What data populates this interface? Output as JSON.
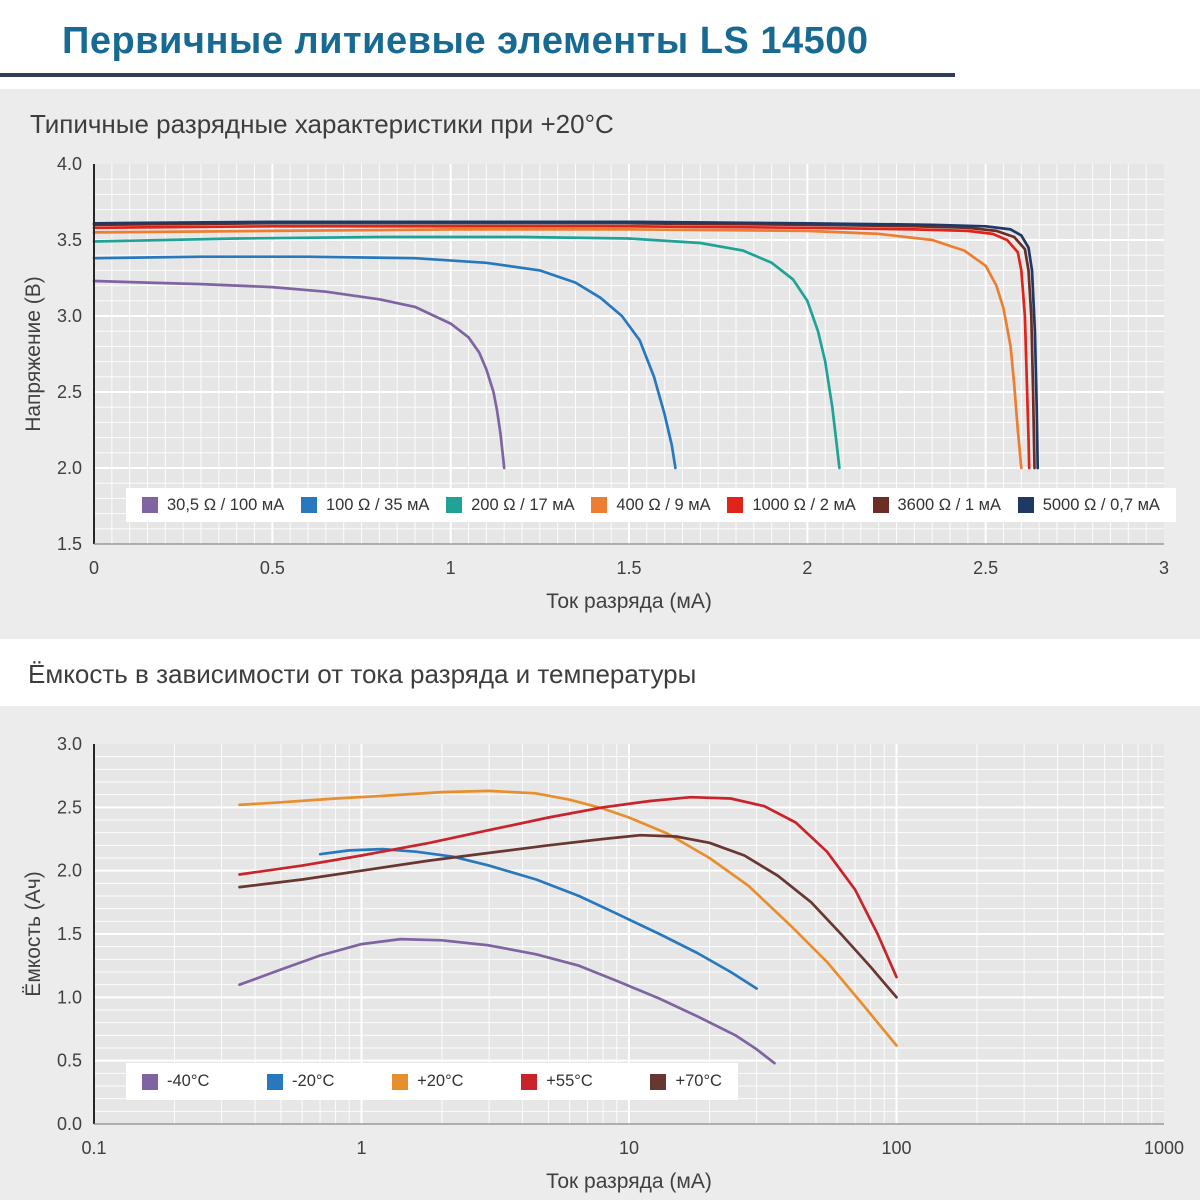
{
  "header": {
    "title": "Первичные литиевые элементы LS 14500"
  },
  "colors": {
    "title": "#196a93",
    "rule": "#2f3d57",
    "panel_bg": "#ececec",
    "plot_bg": "#e6e6e6",
    "grid": "#ffffff"
  },
  "chart_data": [
    {
      "type": "line",
      "title": "Типичные разрядные характеристики при +20°C",
      "xlabel": "Ток разряда (мА)",
      "ylabel": "Напряжение (В)",
      "x_scale": "linear",
      "xlim": [
        0,
        3
      ],
      "ylim": [
        1.5,
        4.0
      ],
      "grid": {
        "x_minor": 0.05,
        "x_major": 0.5,
        "y_minor": 0.1,
        "y_major": 0.5
      },
      "legend_position": "inside-bottom",
      "x_ticks": [
        {
          "v": 0,
          "label": "0"
        },
        {
          "v": 0.5,
          "label": "0.5"
        },
        {
          "v": 1,
          "label": "1"
        },
        {
          "v": 1.5,
          "label": "1.5"
        },
        {
          "v": 2,
          "label": "2"
        },
        {
          "v": 2.5,
          "label": "2.5"
        },
        {
          "v": 3,
          "label": "3"
        }
      ],
      "y_ticks": [
        {
          "v": 1.5,
          "label": "1.5"
        },
        {
          "v": 2.0,
          "label": "2.0"
        },
        {
          "v": 2.5,
          "label": "2.5"
        },
        {
          "v": 3.0,
          "label": "3.0"
        },
        {
          "v": 3.5,
          "label": "3.5"
        },
        {
          "v": 4.0,
          "label": "4.0"
        }
      ],
      "series": [
        {
          "name": "30,5 Ω / 100 мА",
          "color": "#8064A2",
          "points": [
            [
              0,
              3.23
            ],
            [
              0.15,
              3.22
            ],
            [
              0.3,
              3.21
            ],
            [
              0.5,
              3.19
            ],
            [
              0.65,
              3.16
            ],
            [
              0.8,
              3.11
            ],
            [
              0.9,
              3.06
            ],
            [
              1.0,
              2.95
            ],
            [
              1.05,
              2.86
            ],
            [
              1.08,
              2.76
            ],
            [
              1.1,
              2.65
            ],
            [
              1.12,
              2.5
            ],
            [
              1.13,
              2.38
            ],
            [
              1.14,
              2.22
            ],
            [
              1.15,
              2.0
            ]
          ]
        },
        {
          "name": "100 Ω / 35 мА",
          "color": "#2878BE",
          "points": [
            [
              0,
              3.38
            ],
            [
              0.3,
              3.39
            ],
            [
              0.6,
              3.39
            ],
            [
              0.9,
              3.38
            ],
            [
              1.1,
              3.35
            ],
            [
              1.25,
              3.3
            ],
            [
              1.35,
              3.22
            ],
            [
              1.42,
              3.12
            ],
            [
              1.48,
              3.0
            ],
            [
              1.53,
              2.84
            ],
            [
              1.57,
              2.6
            ],
            [
              1.6,
              2.35
            ],
            [
              1.62,
              2.15
            ],
            [
              1.63,
              2.0
            ]
          ]
        },
        {
          "name": "200 Ω / 17 мА",
          "color": "#1FA396",
          "points": [
            [
              0,
              3.49
            ],
            [
              0.4,
              3.51
            ],
            [
              0.8,
              3.52
            ],
            [
              1.2,
              3.52
            ],
            [
              1.5,
              3.51
            ],
            [
              1.7,
              3.48
            ],
            [
              1.82,
              3.43
            ],
            [
              1.9,
              3.35
            ],
            [
              1.96,
              3.24
            ],
            [
              2.0,
              3.1
            ],
            [
              2.03,
              2.9
            ],
            [
              2.05,
              2.7
            ],
            [
              2.07,
              2.4
            ],
            [
              2.08,
              2.2
            ],
            [
              2.09,
              2.0
            ]
          ]
        },
        {
          "name": "400 Ω / 9 мА",
          "color": "#ED7D31",
          "points": [
            [
              0,
              3.55
            ],
            [
              0.5,
              3.56
            ],
            [
              1.0,
              3.57
            ],
            [
              1.5,
              3.57
            ],
            [
              2.0,
              3.56
            ],
            [
              2.2,
              3.54
            ],
            [
              2.35,
              3.5
            ],
            [
              2.44,
              3.43
            ],
            [
              2.5,
              3.33
            ],
            [
              2.53,
              3.2
            ],
            [
              2.55,
              3.05
            ],
            [
              2.57,
              2.8
            ],
            [
              2.58,
              2.55
            ],
            [
              2.59,
              2.25
            ],
            [
              2.6,
              2.0
            ]
          ]
        },
        {
          "name": "1000 Ω / 2 мА",
          "color": "#E2231A",
          "points": [
            [
              0,
              3.58
            ],
            [
              0.5,
              3.59
            ],
            [
              1.0,
              3.59
            ],
            [
              1.5,
              3.59
            ],
            [
              2.0,
              3.58
            ],
            [
              2.3,
              3.57
            ],
            [
              2.45,
              3.56
            ],
            [
              2.52,
              3.54
            ],
            [
              2.56,
              3.5
            ],
            [
              2.59,
              3.42
            ],
            [
              2.6,
              3.3
            ],
            [
              2.61,
              3.0
            ],
            [
              2.615,
              2.6
            ],
            [
              2.62,
              2.2
            ],
            [
              2.622,
              2.0
            ]
          ]
        },
        {
          "name": "3600 Ω / 1 мА",
          "color": "#6B2D26",
          "points": [
            [
              0,
              3.6
            ],
            [
              0.5,
              3.61
            ],
            [
              1.0,
              3.61
            ],
            [
              1.5,
              3.61
            ],
            [
              2.0,
              3.6
            ],
            [
              2.3,
              3.59
            ],
            [
              2.45,
              3.58
            ],
            [
              2.53,
              3.56
            ],
            [
              2.58,
              3.52
            ],
            [
              2.61,
              3.44
            ],
            [
              2.62,
              3.3
            ],
            [
              2.628,
              3.0
            ],
            [
              2.633,
              2.5
            ],
            [
              2.637,
              2.0
            ]
          ]
        },
        {
          "name": "5000 Ω / 0,7 мА",
          "color": "#1F3864",
          "points": [
            [
              0,
              3.61
            ],
            [
              0.5,
              3.62
            ],
            [
              1.0,
              3.62
            ],
            [
              1.5,
              3.62
            ],
            [
              2.0,
              3.61
            ],
            [
              2.35,
              3.6
            ],
            [
              2.5,
              3.59
            ],
            [
              2.57,
              3.57
            ],
            [
              2.6,
              3.53
            ],
            [
              2.62,
              3.45
            ],
            [
              2.63,
              3.3
            ],
            [
              2.638,
              2.9
            ],
            [
              2.643,
              2.4
            ],
            [
              2.646,
              2.0
            ]
          ]
        }
      ]
    },
    {
      "type": "line",
      "title": "Ёмкость в зависимости от тока разряда и температуры",
      "xlabel": "Ток разряда (мА)",
      "ylabel": "Ёмкость (Ач)",
      "x_scale": "log",
      "xlim": [
        0.1,
        1000
      ],
      "ylim": [
        0.0,
        3.0
      ],
      "grid": {
        "y_minor": 0.1,
        "y_major": 0.5
      },
      "legend_position": "inside-bottom-left",
      "x_ticks": [
        {
          "v": 0.1,
          "label": "0.1"
        },
        {
          "v": 1,
          "label": "1"
        },
        {
          "v": 10,
          "label": "10"
        },
        {
          "v": 100,
          "label": "100"
        },
        {
          "v": 1000,
          "label": "1000"
        }
      ],
      "y_ticks": [
        {
          "v": 0.0,
          "label": "0.0"
        },
        {
          "v": 0.5,
          "label": "0.5"
        },
        {
          "v": 1.0,
          "label": "1.0"
        },
        {
          "v": 1.5,
          "label": "1.5"
        },
        {
          "v": 2.0,
          "label": "2.0"
        },
        {
          "v": 2.5,
          "label": "2.5"
        },
        {
          "v": 3.0,
          "label": "3.0"
        }
      ],
      "series": [
        {
          "name": "-40°C",
          "color": "#8064A2",
          "points": [
            [
              0.35,
              1.1
            ],
            [
              0.5,
              1.22
            ],
            [
              0.7,
              1.33
            ],
            [
              1.0,
              1.42
            ],
            [
              1.4,
              1.46
            ],
            [
              2.0,
              1.45
            ],
            [
              3.0,
              1.41
            ],
            [
              4.5,
              1.34
            ],
            [
              6.5,
              1.25
            ],
            [
              9,
              1.13
            ],
            [
              13,
              0.99
            ],
            [
              18,
              0.85
            ],
            [
              25,
              0.7
            ],
            [
              30,
              0.59
            ],
            [
              35,
              0.48
            ]
          ]
        },
        {
          "name": "-20°C",
          "color": "#2878BE",
          "points": [
            [
              0.7,
              2.13
            ],
            [
              0.9,
              2.16
            ],
            [
              1.2,
              2.17
            ],
            [
              1.6,
              2.15
            ],
            [
              2.2,
              2.11
            ],
            [
              3.0,
              2.04
            ],
            [
              4.5,
              1.93
            ],
            [
              6.5,
              1.8
            ],
            [
              9,
              1.66
            ],
            [
              13,
              1.5
            ],
            [
              18,
              1.35
            ],
            [
              24,
              1.2
            ],
            [
              30,
              1.07
            ]
          ]
        },
        {
          "name": "+20°C",
          "color": "#E78F2E",
          "points": [
            [
              0.35,
              2.52
            ],
            [
              0.5,
              2.54
            ],
            [
              0.8,
              2.57
            ],
            [
              1.2,
              2.59
            ],
            [
              2.0,
              2.62
            ],
            [
              3.0,
              2.63
            ],
            [
              4.5,
              2.61
            ],
            [
              6,
              2.56
            ],
            [
              8,
              2.49
            ],
            [
              10,
              2.42
            ],
            [
              14,
              2.29
            ],
            [
              20,
              2.1
            ],
            [
              28,
              1.88
            ],
            [
              40,
              1.57
            ],
            [
              55,
              1.28
            ],
            [
              75,
              0.94
            ],
            [
              100,
              0.62
            ]
          ]
        },
        {
          "name": "+55°C",
          "color": "#C9242B",
          "points": [
            [
              0.35,
              1.97
            ],
            [
              0.6,
              2.04
            ],
            [
              1.0,
              2.12
            ],
            [
              1.8,
              2.22
            ],
            [
              3.0,
              2.32
            ],
            [
              5.0,
              2.42
            ],
            [
              8.0,
              2.5
            ],
            [
              12,
              2.55
            ],
            [
              17,
              2.58
            ],
            [
              24,
              2.57
            ],
            [
              32,
              2.51
            ],
            [
              42,
              2.38
            ],
            [
              55,
              2.15
            ],
            [
              70,
              1.85
            ],
            [
              85,
              1.5
            ],
            [
              100,
              1.16
            ]
          ]
        },
        {
          "name": "+70°C",
          "color": "#683732",
          "points": [
            [
              0.35,
              1.87
            ],
            [
              0.6,
              1.93
            ],
            [
              1.0,
              2.0
            ],
            [
              1.8,
              2.08
            ],
            [
              3.0,
              2.14
            ],
            [
              5.0,
              2.2
            ],
            [
              8.0,
              2.25
            ],
            [
              11,
              2.28
            ],
            [
              15,
              2.27
            ],
            [
              20,
              2.22
            ],
            [
              27,
              2.12
            ],
            [
              36,
              1.96
            ],
            [
              48,
              1.75
            ],
            [
              62,
              1.5
            ],
            [
              80,
              1.24
            ],
            [
              100,
              1.0
            ]
          ]
        }
      ]
    }
  ]
}
